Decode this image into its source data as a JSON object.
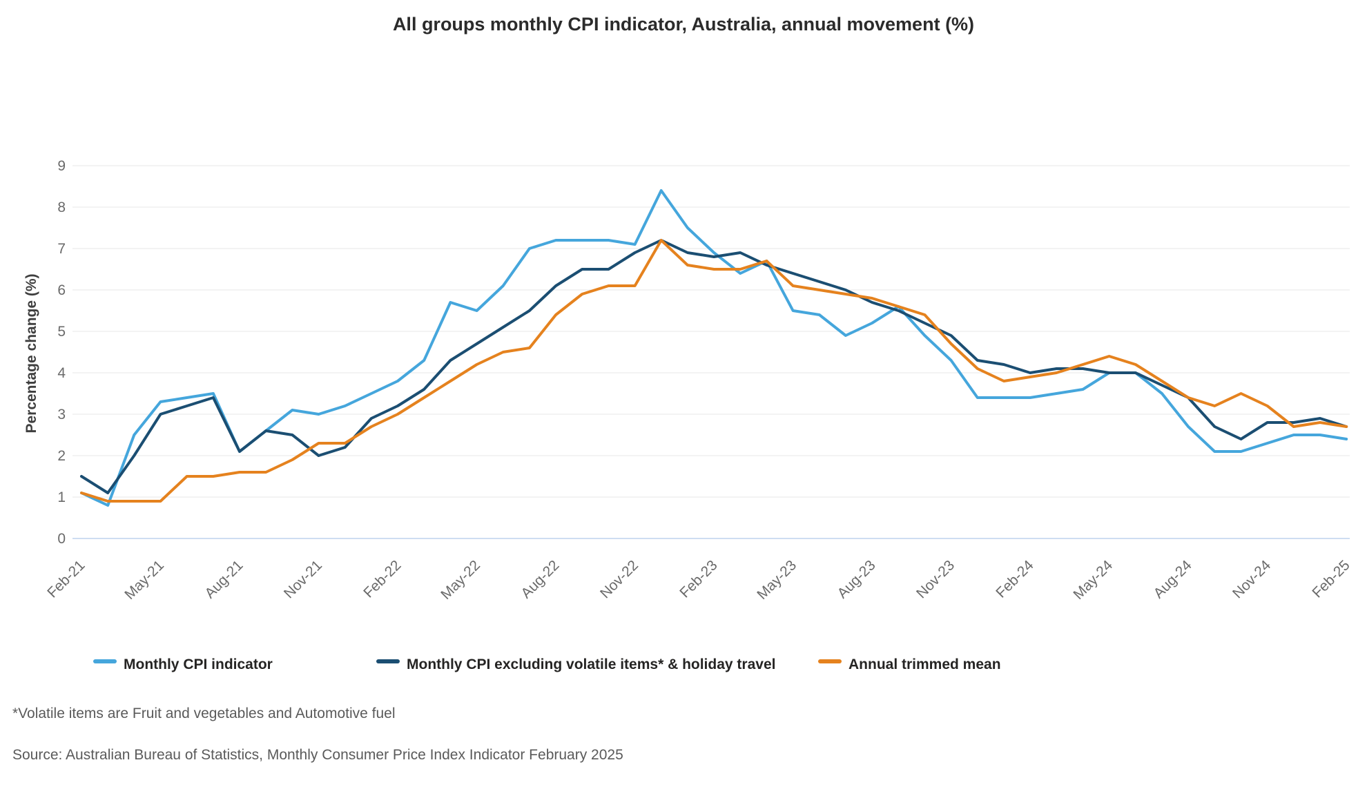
{
  "title": "All groups monthly CPI indicator, Australia, annual movement (%)",
  "y_axis": {
    "title": "Percentage change (%)",
    "tick_labels": [
      "0",
      "1",
      "2",
      "3",
      "4",
      "5",
      "6",
      "7",
      "8",
      "9"
    ],
    "min": 0,
    "max": 9
  },
  "x_axis": {
    "visible_tick_labels": [
      "Feb-21",
      "May-21",
      "Aug-21",
      "Nov-21",
      "Feb-22",
      "May-22",
      "Aug-22",
      "Nov-22",
      "Feb-23",
      "May-23",
      "Aug-23",
      "Nov-23",
      "Feb-24",
      "May-24",
      "Aug-24",
      "Nov-24",
      "Feb-25"
    ],
    "label_every_n_months": 3
  },
  "legend": [
    {
      "label": "Monthly CPI indicator",
      "color": "#45a6dc"
    },
    {
      "label": "Monthly CPI excluding volatile items* & holiday travel",
      "color": "#1b4e72"
    },
    {
      "label": "Annual trimmed mean",
      "color": "#e5821e"
    }
  ],
  "footnote": "*Volatile items are Fruit and vegetables and Automotive fuel",
  "source": "Source: Australian Bureau of Statistics, Monthly Consumer Price Index Indicator February 2025",
  "chart_data": {
    "type": "line",
    "title": "All groups monthly CPI indicator, Australia, annual movement (%)",
    "xlabel": "",
    "ylabel": "Percentage change (%)",
    "ylim": [
      0,
      9
    ],
    "grid": true,
    "legend_position": "bottom",
    "x": [
      "Feb-21",
      "Mar-21",
      "Apr-21",
      "May-21",
      "Jun-21",
      "Jul-21",
      "Aug-21",
      "Sep-21",
      "Oct-21",
      "Nov-21",
      "Dec-21",
      "Jan-22",
      "Feb-22",
      "Mar-22",
      "Apr-22",
      "May-22",
      "Jun-22",
      "Jul-22",
      "Aug-22",
      "Sep-22",
      "Oct-22",
      "Nov-22",
      "Dec-22",
      "Jan-23",
      "Feb-23",
      "Mar-23",
      "Apr-23",
      "May-23",
      "Jun-23",
      "Jul-23",
      "Aug-23",
      "Sep-23",
      "Oct-23",
      "Nov-23",
      "Dec-23",
      "Jan-24",
      "Feb-24",
      "Mar-24",
      "Apr-24",
      "May-24",
      "Jun-24",
      "Jul-24",
      "Aug-24",
      "Sep-24",
      "Oct-24",
      "Nov-24",
      "Dec-24",
      "Jan-25",
      "Feb-25"
    ],
    "series": [
      {
        "name": "Monthly CPI indicator",
        "color": "#45a6dc",
        "values": [
          1.1,
          0.8,
          2.5,
          3.3,
          3.4,
          3.5,
          2.1,
          2.6,
          3.1,
          3.0,
          3.2,
          3.5,
          3.8,
          4.3,
          5.7,
          5.5,
          6.1,
          7.0,
          7.2,
          7.2,
          7.2,
          7.1,
          8.4,
          7.5,
          6.9,
          6.4,
          6.7,
          5.5,
          5.4,
          4.9,
          5.2,
          5.6,
          4.9,
          4.3,
          3.4,
          3.4,
          3.4,
          3.5,
          3.6,
          4.0,
          4.0,
          3.5,
          2.7,
          2.1,
          2.1,
          2.3,
          2.5,
          2.5,
          2.4
        ]
      },
      {
        "name": "Monthly CPI excluding volatile items* & holiday travel",
        "color": "#1b4e72",
        "values": [
          1.5,
          1.1,
          2.0,
          3.0,
          3.2,
          3.4,
          2.1,
          2.6,
          2.5,
          2.0,
          2.2,
          2.9,
          3.2,
          3.6,
          4.3,
          4.7,
          5.1,
          5.5,
          6.1,
          6.5,
          6.5,
          6.9,
          7.2,
          6.9,
          6.8,
          6.9,
          6.6,
          6.4,
          6.2,
          6.0,
          5.7,
          5.5,
          5.2,
          4.9,
          4.3,
          4.2,
          4.0,
          4.1,
          4.1,
          4.0,
          4.0,
          3.7,
          3.4,
          2.7,
          2.4,
          2.8,
          2.8,
          2.9,
          2.7
        ]
      },
      {
        "name": "Annual trimmed mean",
        "color": "#e5821e",
        "values": [
          1.1,
          0.9,
          0.9,
          0.9,
          1.5,
          1.5,
          1.6,
          1.6,
          1.9,
          2.3,
          2.3,
          2.7,
          3.0,
          3.4,
          3.8,
          4.2,
          4.5,
          4.6,
          5.4,
          5.9,
          6.1,
          6.1,
          7.2,
          6.6,
          6.5,
          6.5,
          6.7,
          6.1,
          6.0,
          5.9,
          5.8,
          5.6,
          5.4,
          4.7,
          4.1,
          3.8,
          3.9,
          4.0,
          4.2,
          4.4,
          4.2,
          3.8,
          3.4,
          3.2,
          3.5,
          3.2,
          2.7,
          2.8,
          2.7
        ]
      }
    ]
  }
}
